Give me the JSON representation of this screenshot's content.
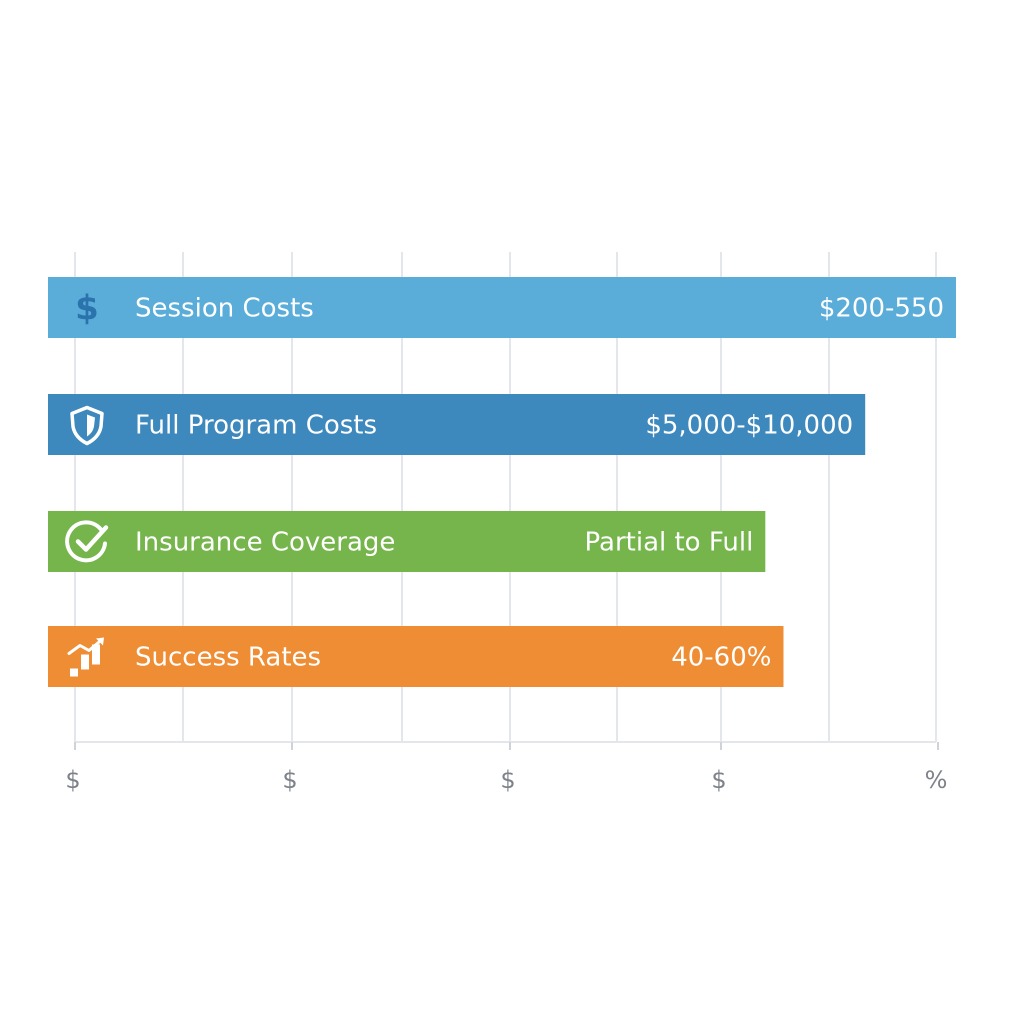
{
  "chart_data": {
    "type": "bar",
    "orientation": "horizontal",
    "title": "",
    "xlabel": "",
    "ylabel": "",
    "grid": true,
    "legend": "none",
    "xlim": [
      0,
      100
    ],
    "x_tick_labels": [
      "$",
      "$",
      "$",
      "$",
      "%"
    ],
    "categories": [
      "Session Costs",
      "Full Program Costs",
      "Insurance Coverage",
      "Success Rates"
    ],
    "values": [
      100,
      90,
      79,
      81
    ],
    "value_labels": [
      "$200-550",
      "$5,000-$10,000",
      "Partial to Full",
      "40-60%"
    ],
    "icons": [
      "dollar-icon",
      "shield-icon",
      "check-circle-icon",
      "growth-chart-icon"
    ],
    "colors": [
      "#5aacd9",
      "#3d88bd",
      "#75b54c",
      "#ee8d33"
    ]
  }
}
